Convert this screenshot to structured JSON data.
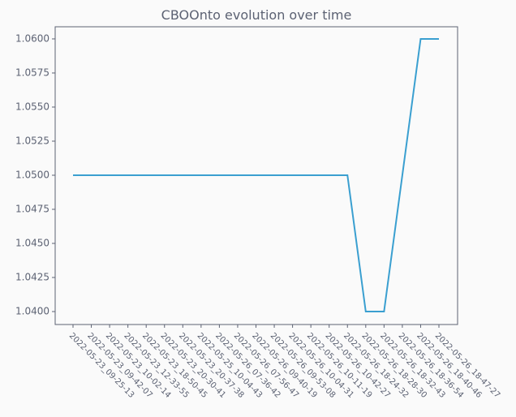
{
  "chart_data": {
    "type": "line",
    "title": "CBOOnto evolution over time",
    "categories": [
      "2022-05-23_09-25-13",
      "2022-05-23_09-42-07",
      "2022-05-23_10-02-14",
      "2022-05-23_12-33-55",
      "2022-05-23_18-50-45",
      "2022-05-23_20-30-41",
      "2022-05-23_20-37-38",
      "2022-05-25_10-04-43",
      "2022-05-26_07-36-42",
      "2022-05-26_07-56-47",
      "2022-05-26_09-40-19",
      "2022-05-26_09-53-08",
      "2022-05-26_10-04-31",
      "2022-05-26_10-11-19",
      "2022-05-26_10-42-27",
      "2022-05-26_18-24-32",
      "2022-05-26_18-28-30",
      "2022-05-26_18-32-43",
      "2022-05-26_18-36-54",
      "2022-05-26_18-40-46",
      "2022-05-26_18-47-27"
    ],
    "values": [
      1.05,
      1.05,
      1.05,
      1.05,
      1.05,
      1.05,
      1.05,
      1.05,
      1.05,
      1.05,
      1.05,
      1.05,
      1.05,
      1.05,
      1.05,
      1.05,
      1.04,
      1.04,
      1.05,
      1.06,
      1.06
    ],
    "color": "#3a9fd0",
    "ylim": [
      1.03905,
      1.06089
    ],
    "yticks": [
      {
        "value": 1.04,
        "label": "1.0400"
      },
      {
        "value": 1.0425,
        "label": "1.0425"
      },
      {
        "value": 1.045,
        "label": "1.0450"
      },
      {
        "value": 1.0475,
        "label": "1.0475"
      },
      {
        "value": 1.05,
        "label": "1.0500"
      },
      {
        "value": 1.0525,
        "label": "1.0525"
      },
      {
        "value": 1.055,
        "label": "1.0550"
      },
      {
        "value": 1.0575,
        "label": "1.0575"
      },
      {
        "value": 1.06,
        "label": "1.0600"
      }
    ],
    "grid": false
  }
}
